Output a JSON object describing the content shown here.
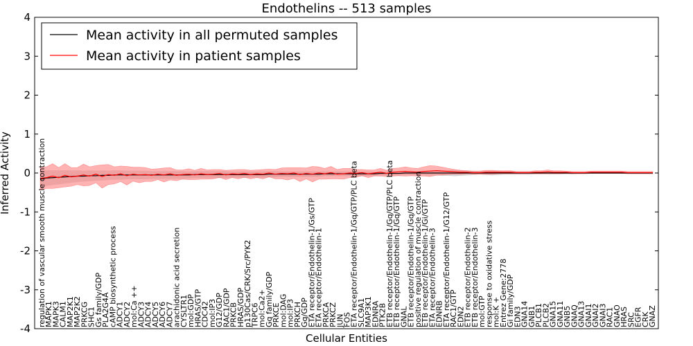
{
  "chart_data": {
    "type": "line",
    "title": "Endothelins -- 513 samples",
    "xlabel": "Cellular Entities",
    "ylabel": "Inferred Activity",
    "ylim": [
      -4,
      4
    ],
    "yticks": [
      -4,
      -3,
      -2,
      -1,
      0,
      1,
      2,
      3,
      4
    ],
    "grid": false,
    "legend_position": "top-left",
    "colors": {
      "permuted": "#000000",
      "patient": "#ff0000",
      "patient_band": "#ff8080",
      "permuted_band": "#b0b0b0",
      "axes": "#000000"
    },
    "categories": [
      "regulation of vascular smooth muscle contraction",
      "MAPK1",
      "MAPK3",
      "CALM1",
      "MAP2K1",
      "MAP2K2",
      "PRKCG",
      "SHC1",
      "Gs family/GDP",
      "PLA2G4A",
      "cAMP biosynthetic process",
      "ADCY1",
      "ADCY2",
      "mol:Ca ++",
      "ADCY3",
      "ADCY4",
      "ADCY5",
      "ADCY6",
      "ADCY7",
      "arachidonic acid secretion",
      "CYSLTR1",
      "mol:GDP",
      "HRAS/GTP",
      "CDC42",
      "mol:IP3",
      "G12/GDP",
      "RAC1/GDP",
      "PRKCB",
      "HRAS/GDP",
      "p130Cas/CRK/Src/PYK2",
      "TRPC6",
      "mol:Ca2+",
      "Gq family/GDP",
      "PRKCE",
      "mol:DAG",
      "mol:IP3",
      "PRKCH",
      "Gq/GDP",
      "ETA receptor/Endothelin-1/Gs/GTP",
      "ETA receptor/Endothelin-1",
      "PRKCA",
      "PRKCZ",
      "JUN",
      "FOS",
      "ETA receptor/Endothelin-1/Gq/GTP/PLC beta",
      "SLC9A1",
      "MAP3K1",
      "EDNRA",
      "PTK2B",
      "ETB receptor/Endothelin-1/Gq/GTP/PLC beta",
      "ETB receptor/Endothelin-1/Gq/GTP",
      "GNAL",
      "ETB receptor/Endothelin-1/Gq/GTP",
      "positive regulation of muscle contraction",
      "ETB receptor/Endothelin-1/Gi/GTP",
      "ETA receptor/Endothelin-3",
      "EDNRB",
      "ETA receptor/Endothelin-1/G12/GTP",
      "RAC1/GTP",
      "EDN2",
      "ETB receptor/Endothelin-2",
      "ETB receptor/Endothelin-3",
      "mol:GTP",
      "response to oxidative stress",
      "mol:K +",
      "Entrez Gene:2778",
      "Gi family/GDP",
      "EDN3",
      "GNA14",
      "GNB1",
      "PLCB1",
      "PLCB2",
      "GNA15",
      "GNA11",
      "GNB5",
      "GNAQ",
      "GNA13",
      "GNAI1",
      "GNAI2",
      "GNAI3",
      "RAC1",
      "GNAO",
      "HRAS",
      "SRC",
      "EGFR",
      "CRK",
      "GNAZ"
    ],
    "x": [
      0,
      0.6,
      1.2,
      1.8,
      2.4,
      3.0,
      3.6,
      4.2,
      4.8,
      5.4,
      6.0,
      6.6,
      7.2,
      7.8,
      8.4,
      9.0,
      9.6,
      10.2,
      10.8,
      11.4,
      12.0,
      12.6,
      13.2,
      13.8,
      14.4,
      15.0,
      15.6,
      16.2,
      16.8,
      17.4,
      18.0,
      18.6,
      19.2,
      19.8,
      20.4,
      21.0,
      21.6,
      22.2,
      22.8,
      23.4,
      24.0,
      24.6,
      25.2,
      25.8,
      26.4,
      27.0,
      27.6,
      28.2,
      28.8,
      29.4,
      30.0,
      30.6,
      31.2,
      31.8,
      32.4,
      33.0,
      33.6,
      34.2,
      34.8,
      35.4,
      36.0,
      36.6,
      37.2,
      37.8,
      38.4,
      39.0,
      39.6,
      40.2,
      40.8,
      41.4,
      42.0,
      42.6,
      43.2,
      43.8,
      44.4,
      45.0,
      45.6,
      46.2,
      46.8,
      47.4,
      48.0,
      48.6,
      49.2,
      49.8,
      50.4,
      51.0,
      51.6,
      52.2,
      52.8,
      53.4,
      54.0,
      54.6,
      55.2,
      55.8,
      56.4,
      57.0,
      57.6,
      58.2,
      58.8,
      59.4
    ],
    "series": [
      {
        "name": "Mean activity in all permuted samples",
        "values": [
          -0.16,
          -0.13,
          -0.12,
          -0.11,
          -0.1,
          -0.09,
          -0.08,
          -0.08,
          -0.07,
          -0.07,
          -0.06,
          -0.06,
          -0.05,
          -0.05,
          -0.05,
          -0.05,
          -0.05,
          -0.05,
          -0.05,
          -0.05,
          -0.05,
          -0.05,
          -0.05,
          -0.05,
          -0.05,
          -0.04,
          -0.04,
          -0.04,
          -0.04,
          -0.04,
          -0.04,
          -0.04,
          -0.04,
          -0.04,
          -0.04,
          -0.04,
          -0.04,
          -0.03,
          -0.03,
          -0.03,
          -0.03,
          -0.03,
          -0.03,
          -0.03,
          -0.03,
          -0.03,
          -0.02,
          -0.02,
          -0.02,
          -0.02,
          -0.02,
          -0.02,
          -0.02,
          -0.02,
          -0.02,
          -0.01,
          -0.01,
          -0.01,
          -0.01,
          0.0,
          0.0,
          0.0,
          0.0,
          0.0,
          0.0,
          0.0,
          0.0,
          0.0,
          0.0,
          0.0,
          0.0,
          0.0,
          0.0,
          0.0,
          0.0,
          0.0,
          0.0,
          0.0,
          0.0,
          0.0,
          0.0,
          0.0,
          0.0,
          0.0,
          0.0,
          0.0,
          0.0,
          0.0,
          0.0,
          0.0,
          0.0,
          0.0,
          0.0,
          0.0,
          0.0,
          0.0,
          0.0,
          0.0,
          0.0,
          0.0
        ],
        "band": [
          0.22,
          0.2,
          0.19,
          0.18,
          0.17,
          0.16,
          0.15,
          0.14,
          0.14,
          0.13,
          0.13,
          0.12,
          0.12,
          0.12,
          0.11,
          0.11,
          0.11,
          0.11,
          0.1,
          0.1,
          0.1,
          0.1,
          0.1,
          0.1,
          0.09,
          0.09,
          0.09,
          0.09,
          0.09,
          0.09,
          0.09,
          0.08,
          0.08,
          0.08,
          0.08,
          0.08,
          0.08,
          0.08,
          0.08,
          0.07,
          0.07,
          0.07,
          0.07,
          0.07,
          0.07,
          0.07,
          0.06,
          0.06,
          0.06,
          0.06,
          0.06,
          0.06,
          0.06,
          0.06,
          0.05,
          0.05,
          0.05,
          0.05,
          0.05,
          0.05,
          0.05,
          0.05,
          0.05,
          0.06,
          0.06,
          0.07,
          0.07,
          0.08,
          0.07,
          0.06,
          0.05,
          0.04,
          0.05,
          0.06,
          0.05,
          0.04,
          0.04,
          0.04,
          0.04,
          0.04,
          0.03,
          0.03,
          0.03,
          0.03,
          0.03,
          0.03,
          0.03,
          0.02,
          0.02,
          0.02,
          0.02,
          0.02,
          0.02,
          0.02,
          0.02,
          0.02,
          0.02,
          0.02,
          0.02,
          0.02
        ]
      },
      {
        "name": "Mean activity in patient samples",
        "values": [
          -0.14,
          -0.12,
          -0.08,
          -0.12,
          -0.06,
          -0.1,
          -0.08,
          -0.05,
          -0.08,
          -0.03,
          -0.09,
          -0.04,
          -0.06,
          -0.02,
          -0.07,
          -0.03,
          -0.05,
          -0.04,
          -0.06,
          -0.03,
          -0.05,
          -0.02,
          -0.06,
          -0.04,
          -0.03,
          -0.05,
          -0.02,
          -0.04,
          -0.03,
          -0.01,
          -0.05,
          -0.02,
          -0.03,
          -0.01,
          -0.04,
          -0.02,
          -0.03,
          0.0,
          -0.03,
          -0.01,
          -0.02,
          0.0,
          -0.04,
          -0.01,
          -0.03,
          0.0,
          -0.02,
          0.01,
          -0.03,
          -0.02,
          0.0,
          -0.01,
          0.01,
          -0.02,
          0.0,
          0.02,
          -0.01,
          0.02,
          0.03,
          0.04,
          0.03,
          0.02,
          0.04,
          0.05,
          0.06,
          0.05,
          0.04,
          0.03,
          0.02,
          0.02,
          0.01,
          0.01,
          0.02,
          0.02,
          0.02,
          0.02,
          0.02,
          0.01,
          0.01,
          0.01,
          0.02,
          0.02,
          0.03,
          0.02,
          0.02,
          0.02,
          0.01,
          0.01,
          0.01,
          0.02,
          0.02,
          0.02,
          0.02,
          0.02,
          0.02,
          0.01,
          0.01,
          0.01,
          0.01,
          0.01
        ],
        "band": [
          0.3,
          0.28,
          0.32,
          0.26,
          0.3,
          0.24,
          0.22,
          0.28,
          0.24,
          0.22,
          0.3,
          0.26,
          0.22,
          0.2,
          0.24,
          0.18,
          0.2,
          0.18,
          0.16,
          0.14,
          0.18,
          0.16,
          0.14,
          0.12,
          0.14,
          0.12,
          0.14,
          0.12,
          0.12,
          0.1,
          0.12,
          0.1,
          0.12,
          0.1,
          0.11,
          0.1,
          0.12,
          0.1,
          0.12,
          0.14,
          0.16,
          0.14,
          0.18,
          0.14,
          0.2,
          0.16,
          0.14,
          0.16,
          0.12,
          0.14,
          0.12,
          0.1,
          0.08,
          0.1,
          0.08,
          0.1,
          0.08,
          0.1,
          0.1,
          0.12,
          0.1,
          0.1,
          0.12,
          0.14,
          0.12,
          0.1,
          0.08,
          0.06,
          0.05,
          0.04,
          0.04,
          0.04,
          0.05,
          0.05,
          0.04,
          0.04,
          0.04,
          0.03,
          0.03,
          0.03,
          0.04,
          0.04,
          0.05,
          0.04,
          0.04,
          0.03,
          0.03,
          0.03,
          0.03,
          0.03,
          0.03,
          0.03,
          0.03,
          0.03,
          0.03,
          0.03,
          0.03,
          0.03,
          0.03,
          0.03
        ]
      }
    ]
  }
}
